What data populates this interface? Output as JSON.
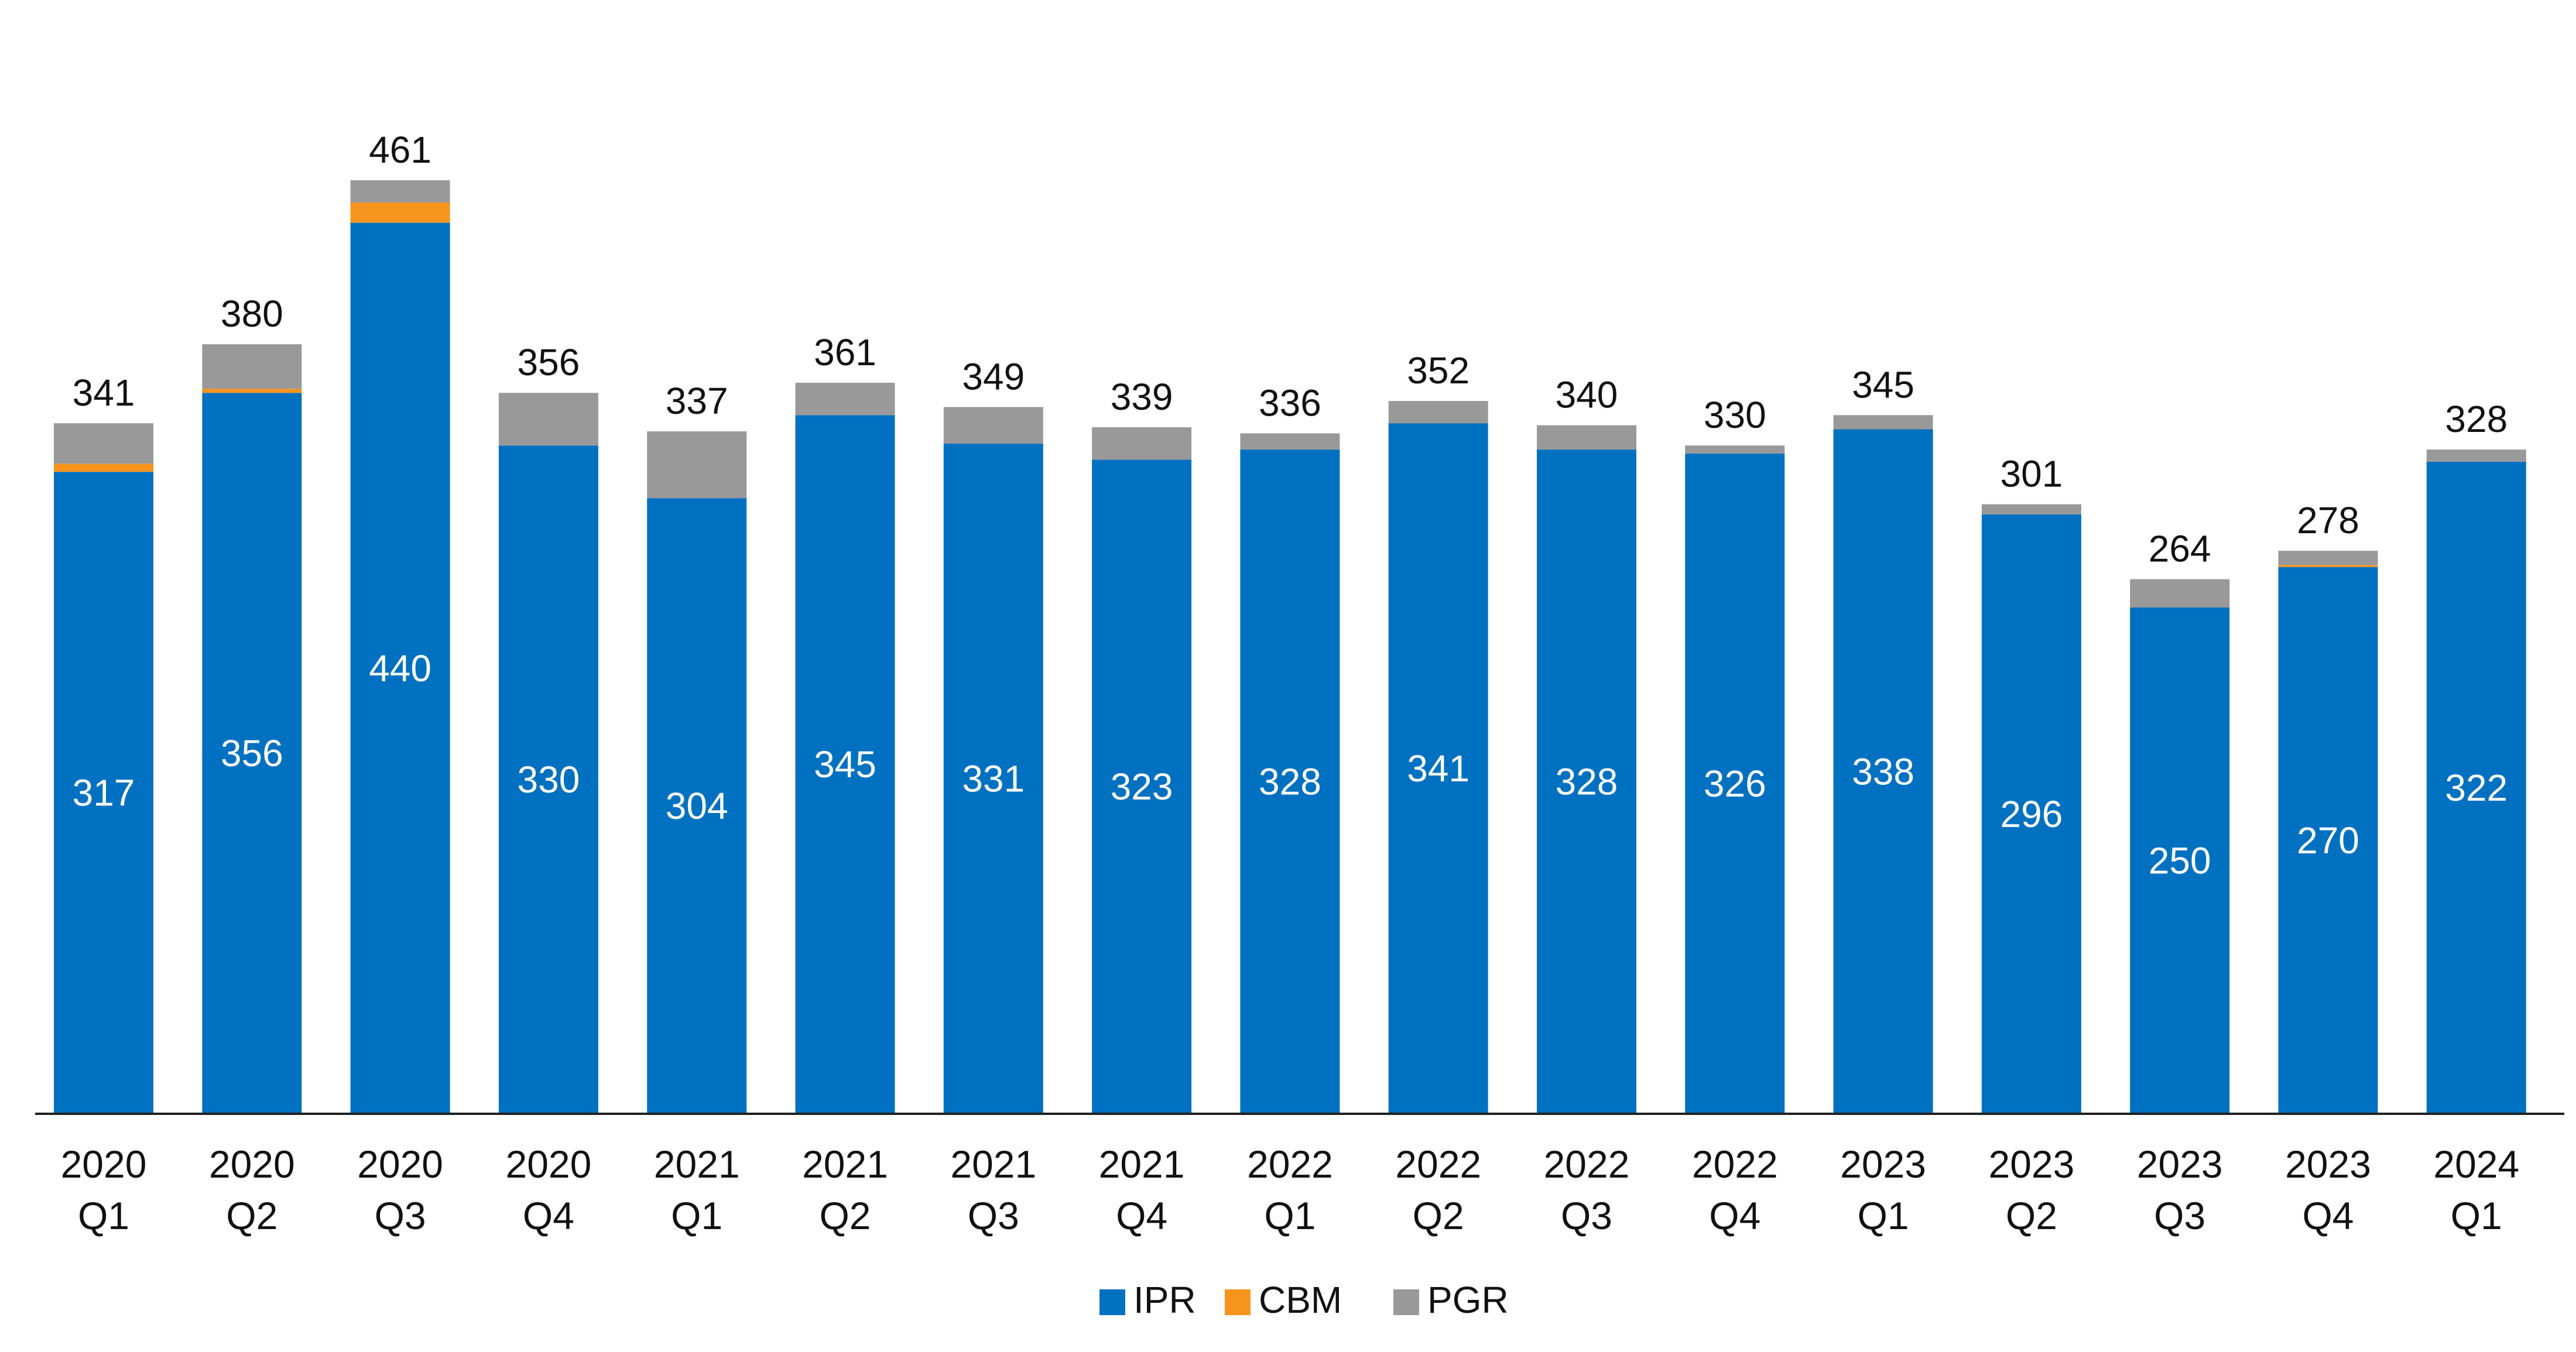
{
  "chart_data": {
    "type": "bar",
    "stacked": true,
    "title": "",
    "xlabel": "",
    "ylabel": "",
    "categories": [
      [
        "2020",
        "Q1"
      ],
      [
        "2020",
        "Q2"
      ],
      [
        "2020",
        "Q3"
      ],
      [
        "2020",
        "Q4"
      ],
      [
        "2021",
        "Q1"
      ],
      [
        "2021",
        "Q2"
      ],
      [
        "2021",
        "Q3"
      ],
      [
        "2021",
        "Q4"
      ],
      [
        "2022",
        "Q1"
      ],
      [
        "2022",
        "Q2"
      ],
      [
        "2022",
        "Q3"
      ],
      [
        "2022",
        "Q4"
      ],
      [
        "2023",
        "Q1"
      ],
      [
        "2023",
        "Q2"
      ],
      [
        "2023",
        "Q3"
      ],
      [
        "2023",
        "Q4"
      ],
      [
        "2024",
        "Q1"
      ]
    ],
    "series": [
      {
        "name": "IPR",
        "color": "#0070C0",
        "values": [
          317,
          356,
          440,
          330,
          304,
          345,
          331,
          323,
          328,
          341,
          328,
          326,
          338,
          296,
          250,
          270,
          322
        ]
      },
      {
        "name": "CBM",
        "color": "#F7941D",
        "values": [
          4,
          2,
          10,
          0,
          0,
          0,
          0,
          0,
          0,
          0,
          0,
          0,
          0,
          0,
          0,
          1,
          0
        ]
      },
      {
        "name": "PGR",
        "color": "#999999",
        "values": [
          20,
          22,
          11,
          26,
          33,
          16,
          18,
          16,
          8,
          11,
          12,
          4,
          7,
          5,
          14,
          7,
          6
        ]
      }
    ],
    "totals": [
      341,
      380,
      461,
      356,
      337,
      361,
      349,
      339,
      336,
      352,
      340,
      330,
      345,
      301,
      264,
      278,
      328
    ],
    "data_labels": {
      "inner_series": "IPR",
      "totals_on_top": true
    },
    "ylim": [
      0,
      461
    ],
    "grid": false,
    "legend": {
      "position": "bottom",
      "entries": [
        "IPR",
        "CBM",
        "PGR"
      ]
    }
  }
}
